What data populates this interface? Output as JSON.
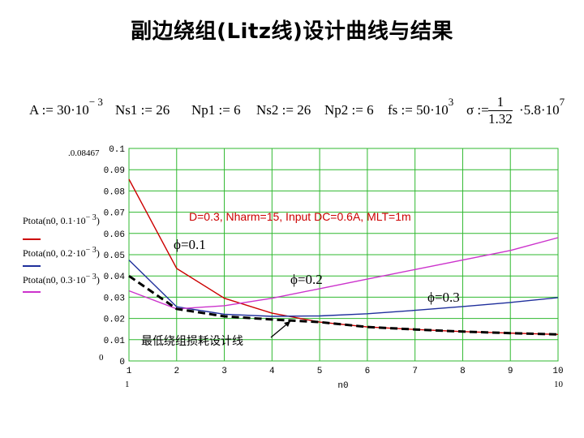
{
  "title": "副边绕组(Litz线)设计曲线与结果",
  "params": {
    "A": {
      "prefix": "A := 30·10",
      "exp": "− 3"
    },
    "Ns1": {
      "text": "Ns1 := 26"
    },
    "Np1": {
      "text": "Np1 := 6"
    },
    "Ns2": {
      "text": "Ns2 := 26"
    },
    "Np2": {
      "text": "Np2 := 6"
    },
    "fs": {
      "prefix": "fs := 50·10",
      "exp": "3"
    },
    "sigma": {
      "prefix": "σ :=",
      "num": "1",
      "den": "1.32",
      "suffix": "·5.8·10",
      "exp": "7"
    }
  },
  "ymax_corner": ".0.08467",
  "ymin_corner": "0",
  "legend": [
    {
      "label_a": "Ptota(n0, 0.1·10",
      "label_b": "− 3",
      "label_c": ")",
      "color": "#cc0000"
    },
    {
      "label_a": "Ptota(n0, 0.2·10",
      "label_b": "− 3",
      "label_c": ")",
      "color": "#1f2f9c"
    },
    {
      "label_a": "Ptota(n0, 0.3·10",
      "label_b": "− 3",
      "label_c": ")",
      "color": "#cc33cc"
    }
  ],
  "x_corner_left": "1",
  "x_corner_right": "10",
  "chart_data": {
    "type": "line",
    "title": "",
    "xlabel": "n0",
    "ylabel": "",
    "xlim": [
      1,
      10
    ],
    "ylim": [
      0,
      0.1
    ],
    "grid": true,
    "x_ticks": [
      "1",
      "2",
      "3",
      "4",
      "5",
      "6",
      "7",
      "8",
      "9",
      "10"
    ],
    "y_ticks": [
      "0",
      "0.01",
      "0.02",
      "0.03",
      "0.04",
      "0.05",
      "0.06",
      "0.07",
      "0.08",
      "0.09",
      "0.1"
    ],
    "x": [
      1,
      2,
      3,
      4,
      5,
      6,
      7,
      8,
      9,
      10
    ],
    "series": [
      {
        "name": "Ptota(n0, 0.1·10−3)",
        "color": "#cc0000",
        "values": [
          0.0855,
          0.0435,
          0.0295,
          0.0225,
          0.0183,
          0.016,
          0.0148,
          0.0138,
          0.0131,
          0.0125
        ]
      },
      {
        "name": "Ptota(n0, 0.2·10−3)",
        "color": "#1f2f9c",
        "values": [
          0.0475,
          0.0255,
          0.022,
          0.021,
          0.0212,
          0.0222,
          0.0238,
          0.0256,
          0.0275,
          0.0298
        ]
      },
      {
        "name": "Ptota(n0, 0.3·10−3)",
        "color": "#cc33cc",
        "values": [
          0.033,
          0.0245,
          0.026,
          0.0295,
          0.034,
          0.0385,
          0.043,
          0.0475,
          0.052,
          0.058
        ]
      },
      {
        "name": "最低绕组损耗设计线",
        "color": "#000000",
        "dashed": true,
        "values": [
          0.04,
          0.0245,
          0.021,
          0.0195,
          0.0183,
          0.016,
          0.0148,
          0.0138,
          0.0131,
          0.0125
        ]
      }
    ],
    "annotations": [
      {
        "text": "D=0.3, Nharm=15, Input DC=0.6A, MLT=1m",
        "color": "#cc0000"
      },
      {
        "text": "ϕ=0.1",
        "color": "#000000"
      },
      {
        "text": "ϕ=0.2",
        "color": "#000000"
      },
      {
        "text": "ϕ=0.3",
        "color": "#000000"
      },
      {
        "text": "最低绕组损耗设计线",
        "color": "#000000"
      }
    ]
  }
}
